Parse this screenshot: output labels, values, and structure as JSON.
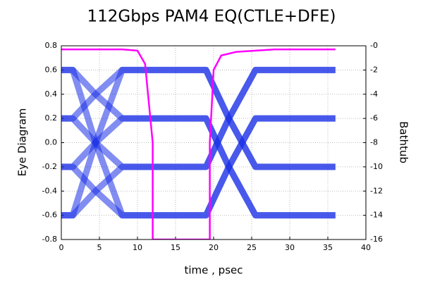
{
  "chart_data": {
    "type": "line",
    "title": "112Gbps PAM4  EQ(CTLE+DFE)",
    "x_label": "time , psec",
    "y_label": "Eye Diagram",
    "y2_label": "Bathtub",
    "xlim": [
      0,
      40
    ],
    "xticks": [
      0,
      5,
      10,
      15,
      20,
      25,
      30,
      35,
      40
    ],
    "ylim": [
      -0.8,
      0.8
    ],
    "yticks": [
      -0.8,
      -0.6,
      -0.4,
      -0.2,
      {
        "value": 0,
        "label": "0.0"
      },
      0.2,
      0.4,
      0.6,
      0.8
    ],
    "y2lim": [
      -16,
      0
    ],
    "y2ticks": [
      -16,
      -14,
      -12,
      -10,
      -8,
      -6,
      -4,
      -2,
      {
        "value": 0,
        "label": "-0"
      }
    ],
    "grid": true,
    "x": [
      0,
      1.5,
      4.5,
      8,
      19,
      22,
      25.5,
      36
    ],
    "series": [
      {
        "color": "#1a2fe6",
        "values": [
          0.6,
          0.6,
          0,
          -0.6,
          -0.6,
          -0.2,
          0.2,
          0.2
        ]
      },
      {
        "color": "#1a2fe6",
        "values": [
          -0.6,
          -0.6,
          0,
          0.6,
          0.6,
          0.2,
          -0.2,
          -0.2
        ]
      },
      {
        "color": "#1a2fe6",
        "values": [
          0.2,
          0.2,
          0,
          -0.2,
          -0.2,
          0.2,
          0.6,
          0.6
        ]
      },
      {
        "color": "#1a2fe6",
        "values": [
          -0.2,
          -0.2,
          0,
          0.2,
          0.2,
          -0.2,
          -0.6,
          -0.6
        ]
      },
      {
        "color": "#1a2fe6",
        "values": [
          0.6,
          0.6,
          0.4,
          0.2,
          0.2,
          -0.2,
          -0.6,
          -0.6
        ]
      },
      {
        "color": "#1a2fe6",
        "values": [
          -0.6,
          -0.6,
          -0.4,
          -0.2,
          -0.2,
          0.2,
          0.6,
          0.6
        ]
      },
      {
        "color": "#1a2fe6",
        "values": [
          0.2,
          0.2,
          0.4,
          0.6,
          0.6,
          0.2,
          -0.2,
          -0.2
        ]
      },
      {
        "color": "#1a2fe6",
        "values": [
          -0.2,
          -0.2,
          -0.4,
          -0.6,
          -0.6,
          -0.2,
          0.2,
          0.2
        ]
      },
      {
        "color": "#ff00ff",
        "axis": "y2",
        "x": [
          0,
          8,
          10,
          11,
          12,
          12,
          19.5,
          19.5,
          20,
          21,
          23,
          28,
          36
        ],
        "values": [
          -0.3,
          -0.3,
          -0.4,
          -1.5,
          -8,
          -16,
          -16,
          -8,
          -2,
          -0.8,
          -0.5,
          -0.3,
          -0.3
        ]
      }
    ]
  }
}
